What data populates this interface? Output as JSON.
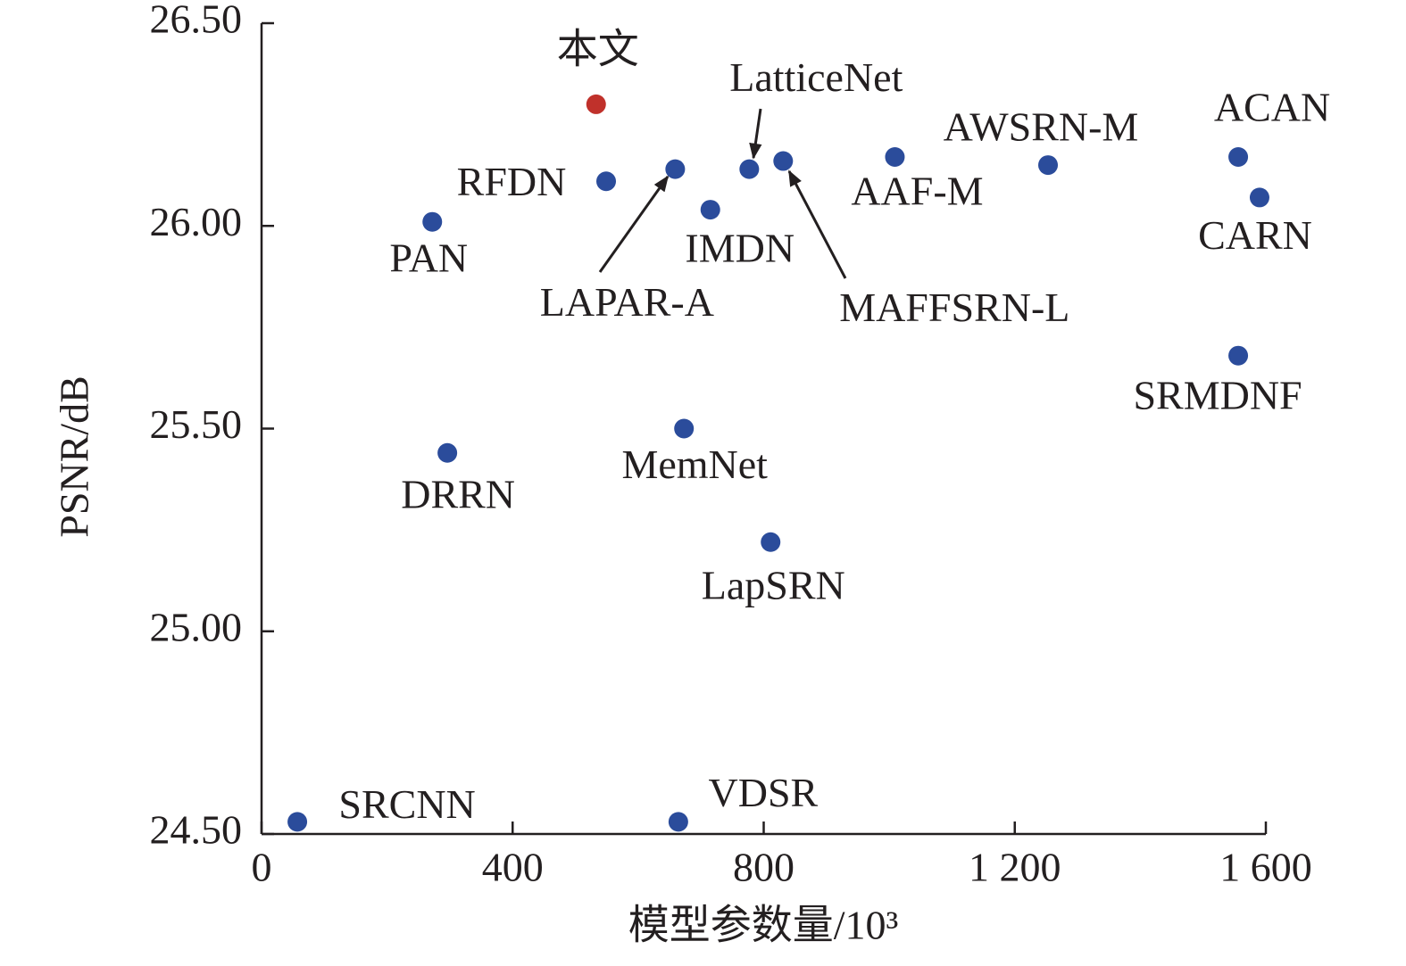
{
  "chart_data": {
    "type": "scatter",
    "xlabel": "模型参数量/10³",
    "ylabel": "PSNR/dB",
    "xlim": [
      0,
      1600
    ],
    "ylim": [
      24.5,
      26.5
    ],
    "xticks": [
      0,
      400,
      800,
      {
        "value": 1200,
        "label": "1 200"
      },
      {
        "value": 1600,
        "label": "1 600"
      }
    ],
    "yticks": [
      {
        "value": 24.5,
        "label": "24.50"
      },
      {
        "value": 25,
        "label": "25.00"
      },
      {
        "value": 25.5,
        "label": "25.50"
      },
      {
        "value": 26,
        "label": "26.00"
      },
      {
        "value": 26.5,
        "label": "26.50"
      }
    ],
    "series": [
      {
        "name": "SRCNN",
        "color": "#2b4c9b",
        "x": [
          57
        ],
        "values": [
          24.53
        ]
      },
      {
        "name": "VDSR",
        "color": "#2b4c9b",
        "x": [
          664
        ],
        "values": [
          24.53
        ]
      },
      {
        "name": "本文",
        "color": "#c0312b",
        "x": [
          533
        ],
        "values": [
          26.3
        ]
      },
      {
        "name": "PAN",
        "color": "#2b4c9b",
        "x": [
          272
        ],
        "values": [
          26.01
        ]
      },
      {
        "name": "RFDN",
        "color": "#2b4c9b",
        "x": [
          549
        ],
        "values": [
          26.11
        ]
      },
      {
        "name": "LAPAR-A",
        "color": "#2b4c9b",
        "x": [
          659
        ],
        "values": [
          26.14
        ]
      },
      {
        "name": "IMDN",
        "color": "#2b4c9b",
        "x": [
          715
        ],
        "values": [
          26.04
        ]
      },
      {
        "name": "LatticeNet",
        "color": "#2b4c9b",
        "x": [
          777
        ],
        "values": [
          26.14
        ]
      },
      {
        "name": "MAFFSRN-L",
        "color": "#2b4c9b",
        "x": [
          831
        ],
        "values": [
          26.16
        ]
      },
      {
        "name": "AAF-M",
        "color": "#2b4c9b",
        "x": [
          1009
        ],
        "values": [
          26.17
        ]
      },
      {
        "name": "AWSRN-M",
        "color": "#2b4c9b",
        "x": [
          1253
        ],
        "values": [
          26.15
        ]
      },
      {
        "name": "ACAN",
        "color": "#2b4c9b",
        "x": [
          1556
        ],
        "values": [
          26.17
        ]
      },
      {
        "name": "CARN",
        "color": "#2b4c9b",
        "x": [
          1590
        ],
        "values": [
          26.07
        ]
      },
      {
        "name": "SRMDNF",
        "color": "#2b4c9b",
        "x": [
          1556
        ],
        "values": [
          25.68
        ]
      },
      {
        "name": "MemNet",
        "color": "#2b4c9b",
        "x": [
          673
        ],
        "values": [
          25.5
        ]
      },
      {
        "name": "DRRN",
        "color": "#2b4c9b",
        "x": [
          296
        ],
        "values": [
          25.44
        ]
      },
      {
        "name": "LapSRN",
        "color": "#2b4c9b",
        "x": [
          811
        ],
        "values": [
          25.22
        ]
      }
    ]
  }
}
